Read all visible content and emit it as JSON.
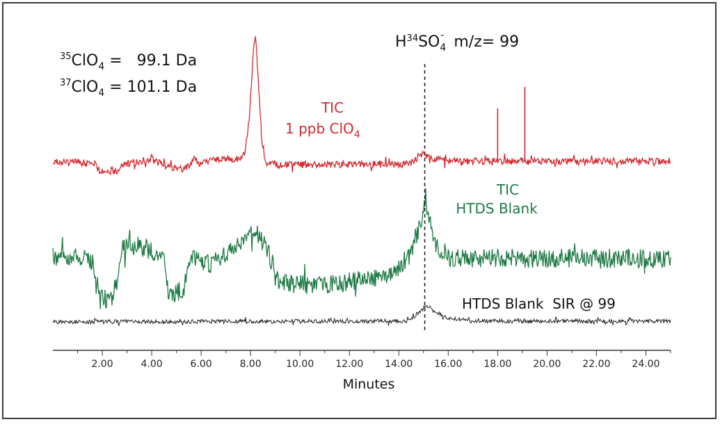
{
  "chart_data": {
    "type": "line",
    "xlabel": "Minutes",
    "xlim": [
      0.0,
      25.0
    ],
    "x_ticks": [
      "2.00",
      "4.00",
      "6.00",
      "8.00",
      "10.00",
      "12.00",
      "14.00",
      "16.00",
      "18.00",
      "20.00",
      "22.00",
      "24.00"
    ],
    "x_tick_values": [
      2,
      4,
      6,
      8,
      10,
      12,
      14,
      16,
      18,
      20,
      22,
      24
    ],
    "marker": {
      "x": 15.05,
      "label_main": "H",
      "label_sup": "34",
      "label_mid": "SO",
      "label_sub": "4",
      "label_charge": "-",
      "label_tail": "  m/z= 99"
    },
    "mass_info": [
      {
        "sup": "35",
        "species": "ClO",
        "sub": "4",
        "text": " =   99.1 Da"
      },
      {
        "sup": "37",
        "species": "ClO",
        "sub": "4",
        "text": " = 101.1 Da"
      }
    ],
    "series": [
      {
        "name_line1": "TIC",
        "name_line2_prefix": "1 ppb ClO",
        "name_line2_sub": "4",
        "color": "#d3272f",
        "noise": 5,
        "profile": [
          [
            0.0,
            233
          ],
          [
            1.7,
            234
          ],
          [
            1.8,
            245
          ],
          [
            2.6,
            246
          ],
          [
            2.8,
            237
          ],
          [
            3.4,
            233
          ],
          [
            3.9,
            229
          ],
          [
            4.3,
            234
          ],
          [
            4.6,
            240
          ],
          [
            5.3,
            243
          ],
          [
            5.6,
            236
          ],
          [
            5.75,
            224
          ],
          [
            5.9,
            237
          ],
          [
            6.5,
            230
          ],
          [
            7.3,
            229
          ],
          [
            7.75,
            224
          ],
          [
            7.95,
            170
          ],
          [
            8.1,
            80
          ],
          [
            8.2,
            48
          ],
          [
            8.3,
            110
          ],
          [
            8.45,
            200
          ],
          [
            8.6,
            234
          ],
          [
            9.2,
            237
          ],
          [
            14.4,
            236
          ],
          [
            15.0,
            222
          ],
          [
            15.4,
            228
          ],
          [
            16.0,
            232
          ],
          [
            25.0,
            232
          ]
        ],
        "spikes": [
          [
            18.0,
            156
          ],
          [
            19.1,
            125
          ]
        ]
      },
      {
        "name_line1": "TIC",
        "name_line2": "HTDS Blank",
        "color": "#1e7a45",
        "noise": 14,
        "profile": [
          [
            0.0,
            368
          ],
          [
            1.65,
            374
          ],
          [
            1.75,
            420
          ],
          [
            1.9,
            432
          ],
          [
            2.4,
            426
          ],
          [
            2.65,
            400
          ],
          [
            2.75,
            362
          ],
          [
            3.0,
            352
          ],
          [
            4.0,
            360
          ],
          [
            4.5,
            372
          ],
          [
            4.6,
            412
          ],
          [
            4.8,
            424
          ],
          [
            5.3,
            415
          ],
          [
            5.55,
            385
          ],
          [
            5.7,
            372
          ],
          [
            6.4,
            380
          ],
          [
            7.2,
            360
          ],
          [
            7.8,
            345
          ],
          [
            8.2,
            330
          ],
          [
            8.6,
            355
          ],
          [
            8.9,
            380
          ],
          [
            9.0,
            400
          ],
          [
            9.2,
            408
          ],
          [
            11.0,
            410
          ],
          [
            13.5,
            398
          ],
          [
            14.4,
            370
          ],
          [
            14.9,
            318
          ],
          [
            15.05,
            290
          ],
          [
            15.2,
            305
          ],
          [
            15.5,
            355
          ],
          [
            16.0,
            372
          ],
          [
            25.0,
            372
          ]
        ]
      },
      {
        "name": "HTDS Blank  SIR @ 99",
        "color": "#222222",
        "noise": 3,
        "profile": [
          [
            0.0,
            463
          ],
          [
            14.3,
            462
          ],
          [
            14.9,
            448
          ],
          [
            15.1,
            438
          ],
          [
            15.4,
            448
          ],
          [
            16.0,
            458
          ],
          [
            17.0,
            462
          ],
          [
            25.0,
            462
          ]
        ]
      }
    ]
  }
}
